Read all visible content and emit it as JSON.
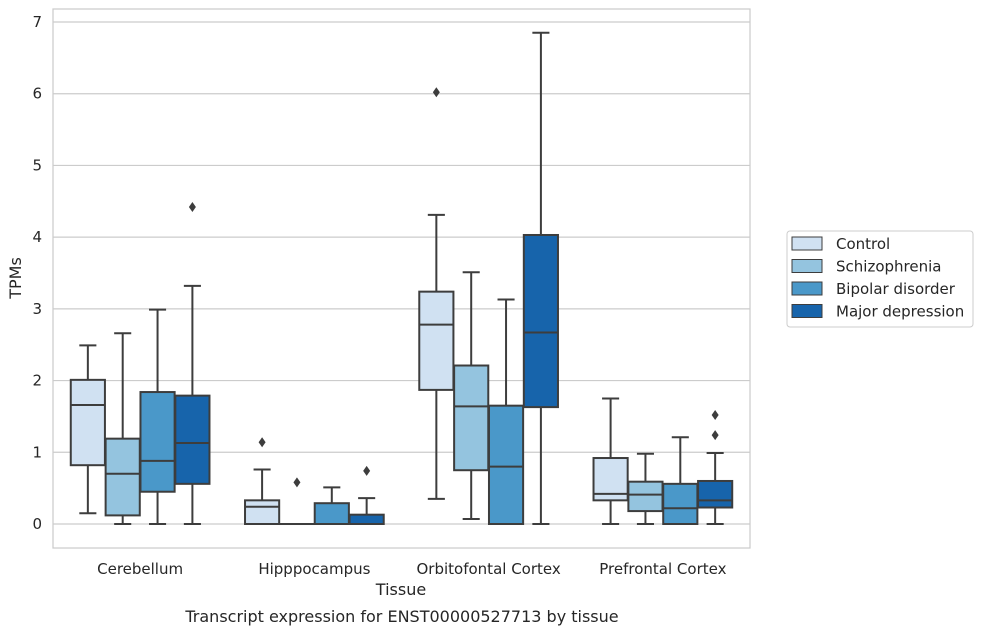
{
  "chart_data": {
    "type": "boxplot",
    "title": "",
    "caption": "Transcript expression for ENST00000527713 by tissue",
    "xlabel": "Tissue",
    "ylabel": "TPMs",
    "ylim": [
      -0.33,
      7.2
    ],
    "yticks": [
      0,
      1,
      2,
      3,
      4,
      5,
      6,
      7
    ],
    "grid": true,
    "legend_position": "right",
    "categories": [
      "Cerebellum",
      "Hipppocampus",
      "Orbitofontal Cortex",
      "Prefrontal Cortex"
    ],
    "series": [
      {
        "name": "Control",
        "color": "#d0e1f2",
        "boxes": [
          {
            "whisker_low": 0.15,
            "q1": 0.82,
            "median": 1.66,
            "q3": 2.01,
            "whisker_high": 2.49,
            "outliers": []
          },
          {
            "whisker_low": 0.0,
            "q1": 0.0,
            "median": 0.24,
            "q3": 0.33,
            "whisker_high": 0.76,
            "outliers": [
              1.14
            ]
          },
          {
            "whisker_low": 0.35,
            "q1": 1.87,
            "median": 2.78,
            "q3": 3.24,
            "whisker_high": 4.31,
            "outliers": [
              6.02
            ]
          },
          {
            "whisker_low": 0.0,
            "q1": 0.33,
            "median": 0.42,
            "q3": 0.92,
            "whisker_high": 1.75,
            "outliers": []
          }
        ]
      },
      {
        "name": "Schizophrenia",
        "color": "#94c4df",
        "boxes": [
          {
            "whisker_low": 0.0,
            "q1": 0.12,
            "median": 0.7,
            "q3": 1.19,
            "whisker_high": 2.66,
            "outliers": []
          },
          {
            "whisker_low": 0.0,
            "q1": 0.0,
            "median": 0.0,
            "q3": 0.0,
            "whisker_high": 0.0,
            "outliers": [
              0.58
            ]
          },
          {
            "whisker_low": 0.07,
            "q1": 0.75,
            "median": 1.64,
            "q3": 2.21,
            "whisker_high": 3.51,
            "outliers": []
          },
          {
            "whisker_low": 0.0,
            "q1": 0.18,
            "median": 0.41,
            "q3": 0.59,
            "whisker_high": 0.98,
            "outliers": []
          }
        ]
      },
      {
        "name": "Bipolar disorder",
        "color": "#4a98c9",
        "boxes": [
          {
            "whisker_low": 0.0,
            "q1": 0.45,
            "median": 0.88,
            "q3": 1.84,
            "whisker_high": 2.99,
            "outliers": []
          },
          {
            "whisker_low": 0.0,
            "q1": 0.0,
            "median": 0.0,
            "q3": 0.29,
            "whisker_high": 0.51,
            "outliers": []
          },
          {
            "whisker_low": 0.0,
            "q1": 0.0,
            "median": 0.8,
            "q3": 1.65,
            "whisker_high": 3.13,
            "outliers": []
          },
          {
            "whisker_low": 0.0,
            "q1": 0.0,
            "median": 0.22,
            "q3": 0.56,
            "whisker_high": 1.21,
            "outliers": []
          }
        ]
      },
      {
        "name": "Major depression",
        "color": "#1764ab",
        "boxes": [
          {
            "whisker_low": 0.0,
            "q1": 0.56,
            "median": 1.13,
            "q3": 1.79,
            "whisker_high": 3.32,
            "outliers": [
              4.42
            ]
          },
          {
            "whisker_low": 0.0,
            "q1": 0.0,
            "median": 0.0,
            "q3": 0.13,
            "whisker_high": 0.36,
            "outliers": [
              0.74
            ]
          },
          {
            "whisker_low": 0.0,
            "q1": 1.63,
            "median": 2.67,
            "q3": 4.03,
            "whisker_high": 6.85,
            "outliers": []
          },
          {
            "whisker_low": 0.0,
            "q1": 0.23,
            "median": 0.33,
            "q3": 0.6,
            "whisker_high": 0.99,
            "outliers": [
              1.24,
              1.52
            ]
          }
        ]
      }
    ]
  }
}
